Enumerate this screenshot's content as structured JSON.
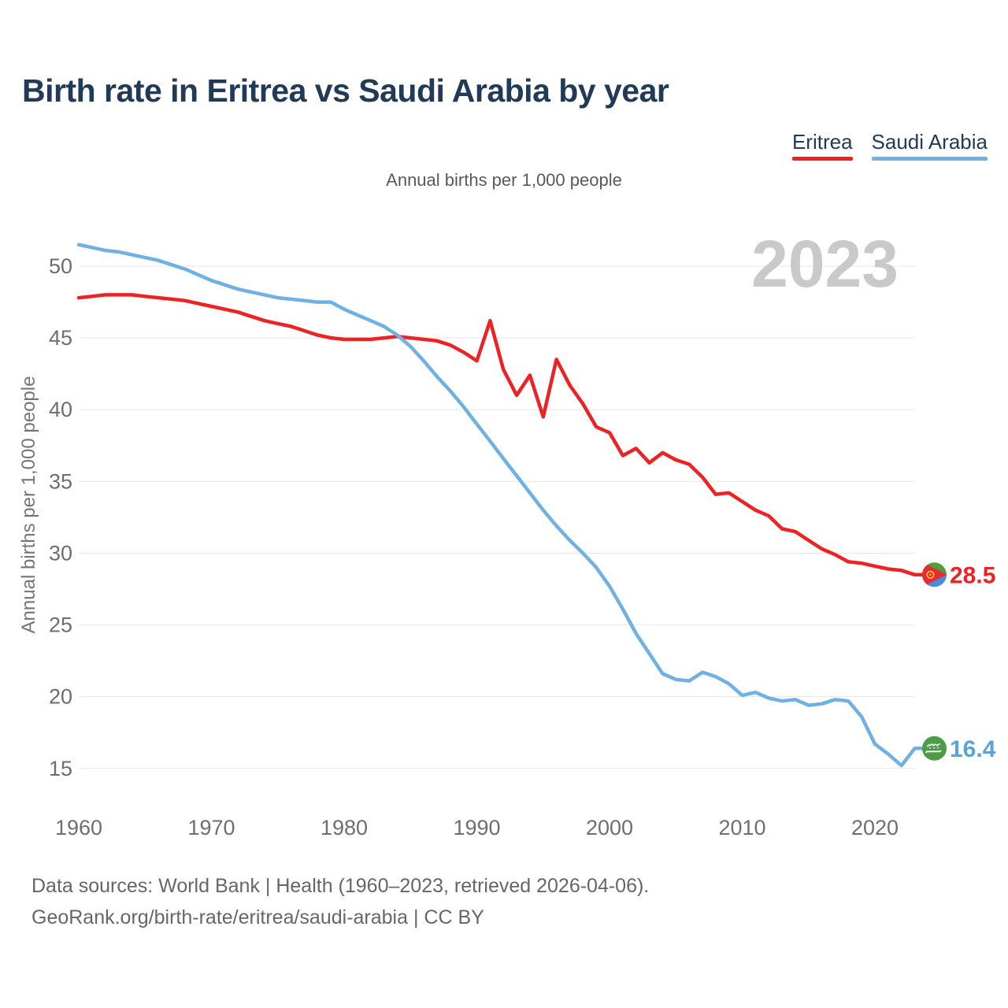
{
  "title": "Birth rate in Eritrea vs Saudi Arabia by year",
  "subtitle": "Annual births per 1,000 people",
  "watermark_year": "2023",
  "legend": [
    {
      "label": "Eritrea",
      "color": "#ed2224"
    },
    {
      "label": "Saudi Arabia",
      "color": "#6fb1e2"
    }
  ],
  "footer": {
    "line1": "Data sources: World Bank | Health (1960–2023, retrieved 2026-04-06).",
    "line2": "GeoRank.org/birth-rate/eritrea/saudi-arabia | CC BY"
  },
  "chart_data": {
    "type": "line",
    "title": "Birth rate in Eritrea vs Saudi Arabia by year",
    "ylabel": "Annual births per 1,000 people",
    "xlabel": "",
    "grid": true,
    "legend_position": "top-right",
    "xlim": [
      1960,
      2023
    ],
    "ylim": [
      13.5,
      52.5
    ],
    "x_ticks": [
      1960,
      1970,
      1980,
      1990,
      2000,
      2010,
      2020
    ],
    "y_ticks": [
      15,
      20,
      25,
      30,
      35,
      40,
      45,
      50
    ],
    "years": [
      1960,
      1961,
      1962,
      1963,
      1964,
      1965,
      1966,
      1967,
      1968,
      1969,
      1970,
      1971,
      1972,
      1973,
      1974,
      1975,
      1976,
      1977,
      1978,
      1979,
      1980,
      1981,
      1982,
      1983,
      1984,
      1985,
      1986,
      1987,
      1988,
      1989,
      1990,
      1991,
      1992,
      1993,
      1994,
      1995,
      1996,
      1997,
      1998,
      1999,
      2000,
      2001,
      2002,
      2003,
      2004,
      2005,
      2006,
      2007,
      2008,
      2009,
      2010,
      2011,
      2012,
      2013,
      2014,
      2015,
      2016,
      2017,
      2018,
      2019,
      2020,
      2021,
      2022,
      2023
    ],
    "series": [
      {
        "name": "Eritrea",
        "color": "#ed2224",
        "end_label": "28.5",
        "end_value": 28.5,
        "flag": "eritrea-flag",
        "values": [
          47.8,
          47.9,
          48.0,
          48.0,
          48.0,
          47.9,
          47.8,
          47.7,
          47.6,
          47.4,
          47.2,
          47.0,
          46.8,
          46.5,
          46.2,
          46.0,
          45.8,
          45.5,
          45.2,
          45.0,
          44.9,
          44.9,
          44.9,
          45.0,
          45.1,
          45.0,
          44.9,
          44.8,
          44.5,
          44.0,
          43.4,
          46.2,
          42.8,
          41.0,
          42.4,
          39.5,
          43.5,
          41.7,
          40.4,
          38.8,
          38.4,
          36.8,
          37.3,
          36.3,
          37.0,
          36.5,
          36.2,
          35.3,
          34.1,
          34.2,
          33.6,
          33.0,
          32.6,
          31.7,
          31.5,
          30.9,
          30.3,
          29.9,
          29.4,
          29.3,
          29.1,
          28.9,
          28.8,
          28.5
        ]
      },
      {
        "name": "Saudi Arabia",
        "color": "#6fb1e2",
        "end_label": "16.4",
        "end_value": 16.4,
        "flag": "saudi-arabia-flag",
        "values": [
          51.5,
          51.3,
          51.1,
          51.0,
          50.8,
          50.6,
          50.4,
          50.1,
          49.8,
          49.4,
          49.0,
          48.7,
          48.4,
          48.2,
          48.0,
          47.8,
          47.7,
          47.6,
          47.5,
          47.5,
          47.0,
          46.6,
          46.2,
          45.8,
          45.2,
          44.4,
          43.4,
          42.3,
          41.3,
          40.2,
          39.0,
          37.8,
          36.6,
          35.4,
          34.2,
          33.0,
          31.9,
          30.9,
          30.0,
          29.0,
          27.7,
          26.1,
          24.4,
          23.0,
          21.6,
          21.2,
          21.1,
          21.7,
          21.4,
          20.9,
          20.1,
          20.3,
          19.9,
          19.7,
          19.8,
          19.4,
          19.5,
          19.8,
          19.7,
          18.6,
          16.7,
          16.0,
          15.2,
          16.4
        ]
      }
    ]
  },
  "colors": {
    "title": "#213a57",
    "axis_text": "#6e6e6e",
    "gridline": "#e7e7e7",
    "watermark": "#c9c9c9",
    "footer_text": "#666666",
    "background": "#ffffff"
  }
}
